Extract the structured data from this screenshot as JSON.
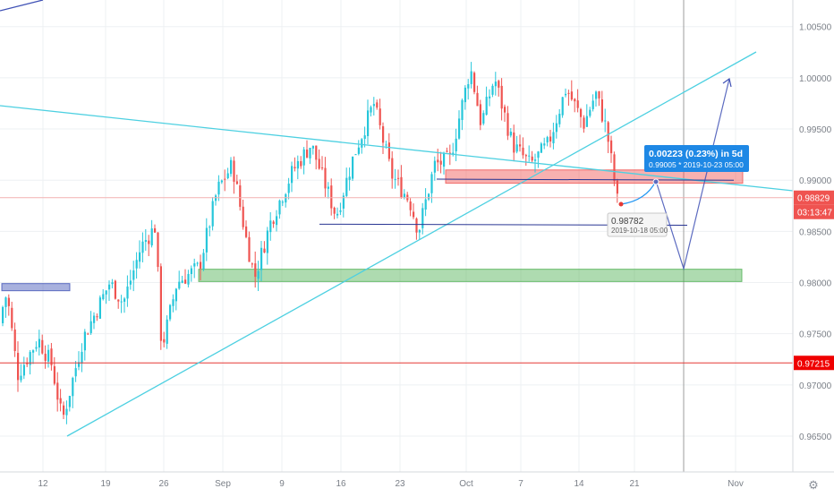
{
  "chart_data": {
    "type": "candlestick",
    "x_ticks": [
      "12",
      "19",
      "26",
      "Sep",
      "9",
      "16",
      "23",
      "Oct",
      "7",
      "14",
      "21",
      "Nov"
    ],
    "y_ticks": [
      "0.96500",
      "0.97000",
      "0.97500",
      "0.98000",
      "0.98500",
      "0.99000",
      "0.99500",
      "1.00000",
      "1.00500"
    ],
    "ylim": [
      0.9615,
      1.0076
    ],
    "grid": true,
    "colors": {
      "up": "#26c6da",
      "down": "#ef5350",
      "trend": "#4dd0e1",
      "projection": "#3f51b5"
    },
    "price_labels": [
      {
        "text": "0.98829",
        "value": 0.98829,
        "color": "#ef5350"
      },
      {
        "text": "03:13:47",
        "color": "#ef5350"
      },
      {
        "text": "0.97215",
        "value": 0.97215,
        "color": "#ef0000"
      }
    ],
    "horizontal_lines": [
      {
        "value": 0.98829,
        "color": "#f2b1b1"
      },
      {
        "value": 0.97215,
        "color": "#e53935"
      }
    ],
    "zones": [
      {
        "name": "support",
        "value_low": 0.9801,
        "value_high": 0.9813,
        "color": "#4caf50"
      },
      {
        "name": "resistance",
        "value_low": 0.9897,
        "value_high": 0.991,
        "color": "#ef5350"
      },
      {
        "name": "old-zone",
        "value_low": 0.9792,
        "value_high": 0.9799,
        "color": "#3f51b5"
      }
    ],
    "measure_tooltip": {
      "line1": "0.00223 (0.23%) in 5d",
      "line2": "0.99005 *  2019-10-23  05:00"
    },
    "price_tooltip": {
      "line1": "0.98782",
      "line2": "2019-10-18 05:00"
    }
  }
}
